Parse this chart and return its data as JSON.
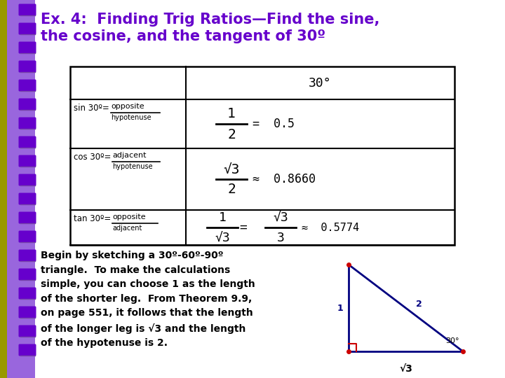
{
  "title_line1": "Ex. 4:  Finding Trig Ratios—Find the sine,",
  "title_line2": "the cosine, and the tangent of 30º",
  "title_color": "#6600cc",
  "bg_color": "#ffffff",
  "spiral_color": "#6600cc",
  "spiral_bg": "#9966cc",
  "table_header": "30°",
  "body_bold_text": "Begin by sketching a 30º-60º-90º\ntriangle.  To make the calculations\nsimple, you can choose 1 as the length\nof the shorter leg.  From Theorem 9.9,\non page 551, it follows that the length\nof the longer leg is √3 and the length\nof the hypotenuse is 2.",
  "triangle_color": "#000080",
  "right_angle_color": "#cc0000"
}
